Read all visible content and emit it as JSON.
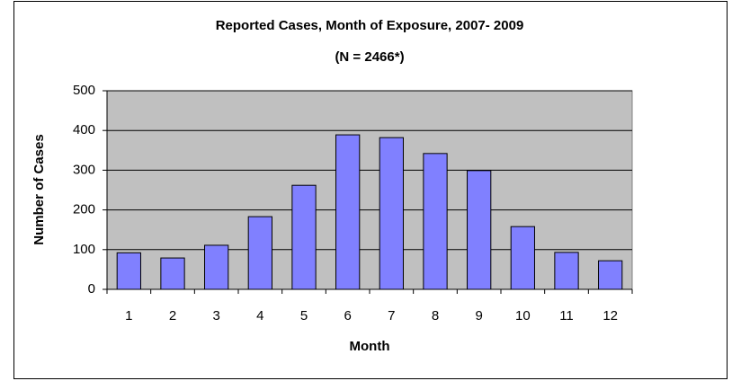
{
  "chart_data": {
    "type": "bar",
    "title": "Reported Cases, Month of Exposure, 2007- 2009",
    "subtitle": "(N = 2466*)",
    "x_label": "Month",
    "y_label": "Number of Cases",
    "categories": [
      "1",
      "2",
      "3",
      "4",
      "5",
      "6",
      "7",
      "8",
      "9",
      "10",
      "11",
      "12"
    ],
    "values": [
      92,
      79,
      111,
      183,
      262,
      389,
      382,
      342,
      299,
      158,
      93,
      72
    ],
    "color": "#8080ff",
    "ylim": [
      0,
      500
    ],
    "yticks": [
      0,
      100,
      200,
      300,
      400,
      500
    ],
    "grid": true
  }
}
